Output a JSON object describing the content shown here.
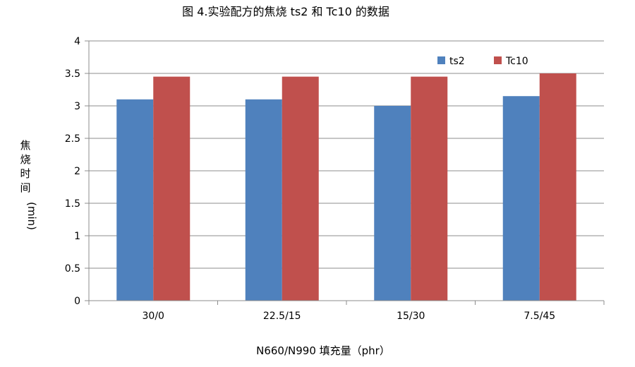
{
  "chart_data": {
    "type": "bar",
    "title": "图 4.实验配方的焦烧 ts2 和 Tc10 的数据",
    "xlabel": "N660/N990 填充量（phr）",
    "ylabel_chars": [
      "焦",
      "烧",
      "时",
      "间"
    ],
    "ylabel_unit": "(min)",
    "categories": [
      "30/0",
      "22.5/15",
      "15/30",
      "7.5/45"
    ],
    "series": [
      {
        "name": "ts2",
        "values": [
          3.1,
          3.1,
          3.0,
          3.15
        ],
        "color": "#4f81bd"
      },
      {
        "name": "Tc10",
        "values": [
          3.45,
          3.45,
          3.45,
          3.5
        ],
        "color": "#c0504d"
      }
    ],
    "ylim": [
      0,
      4
    ],
    "yticks": [
      "0",
      "0.5",
      "1",
      "1.5",
      "2",
      "2.5",
      "3",
      "3.5",
      "4"
    ],
    "grid": true,
    "legend_position": "top-right",
    "axis_color": "#8c8c8c",
    "grid_color": "#8c8c8c"
  }
}
